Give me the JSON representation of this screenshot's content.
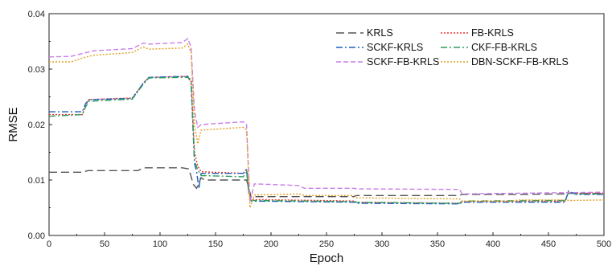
{
  "chart_data": {
    "type": "line",
    "title": "",
    "xlabel": "Epoch",
    "ylabel": "RMSE",
    "xlim": [
      0,
      500
    ],
    "ylim": [
      0,
      0.04
    ],
    "xticks": [
      0,
      50,
      100,
      150,
      200,
      250,
      300,
      350,
      400,
      450,
      500
    ],
    "yticks": [
      0.0,
      0.01,
      0.02,
      0.03,
      0.04
    ],
    "ytick_labels": [
      "0.00",
      "0.01",
      "0.02",
      "0.03",
      "0.04"
    ],
    "grid": false,
    "legend_position": "top-right",
    "series": [
      {
        "name": "KRLS",
        "color": "#555555",
        "dash": "long-dash",
        "points": [
          [
            0,
            0.0114
          ],
          [
            30,
            0.0114
          ],
          [
            35,
            0.0117
          ],
          [
            80,
            0.0117
          ],
          [
            85,
            0.0122
          ],
          [
            120,
            0.0122
          ],
          [
            126,
            0.012
          ],
          [
            130,
            0.0092
          ],
          [
            133,
            0.0085
          ],
          [
            137,
            0.0104
          ],
          [
            140,
            0.01
          ],
          [
            178,
            0.01
          ],
          [
            180,
            0.0085
          ],
          [
            182,
            0.007
          ],
          [
            275,
            0.007
          ],
          [
            277,
            0.0072
          ],
          [
            370,
            0.0072
          ],
          [
            372,
            0.0074
          ],
          [
            420,
            0.0074
          ],
          [
            422,
            0.0074
          ],
          [
            465,
            0.0075
          ],
          [
            470,
            0.0076
          ],
          [
            500,
            0.0076
          ]
        ]
      },
      {
        "name": "FB-KRLS",
        "color": "#ee3333",
        "dash": "dot",
        "points": [
          [
            0,
            0.0218
          ],
          [
            30,
            0.0218
          ],
          [
            33,
            0.0235
          ],
          [
            36,
            0.0245
          ],
          [
            75,
            0.0248
          ],
          [
            85,
            0.0275
          ],
          [
            90,
            0.0285
          ],
          [
            125,
            0.0287
          ],
          [
            128,
            0.028
          ],
          [
            131,
            0.015
          ],
          [
            134,
            0.0125
          ],
          [
            137,
            0.0115
          ],
          [
            175,
            0.0112
          ],
          [
            178,
            0.0118
          ],
          [
            180,
            0.008
          ],
          [
            182,
            0.0065
          ],
          [
            275,
            0.0062
          ],
          [
            277,
            0.006
          ],
          [
            370,
            0.0058
          ],
          [
            372,
            0.0061
          ],
          [
            465,
            0.0062
          ],
          [
            468,
            0.0078
          ],
          [
            475,
            0.0076
          ],
          [
            500,
            0.0076
          ]
        ]
      },
      {
        "name": "SCKF-KRLS",
        "color": "#1f5fbf",
        "dash": "dash-dot",
        "points": [
          [
            0,
            0.0223
          ],
          [
            30,
            0.0223
          ],
          [
            33,
            0.0238
          ],
          [
            36,
            0.0245
          ],
          [
            75,
            0.0247
          ],
          [
            85,
            0.0275
          ],
          [
            90,
            0.0285
          ],
          [
            125,
            0.0287
          ],
          [
            128,
            0.0275
          ],
          [
            131,
            0.013
          ],
          [
            133,
            0.0115
          ],
          [
            135,
            0.0085
          ],
          [
            137,
            0.0112
          ],
          [
            175,
            0.0112
          ],
          [
            178,
            0.012
          ],
          [
            180,
            0.0075
          ],
          [
            182,
            0.0062
          ],
          [
            275,
            0.006
          ],
          [
            277,
            0.0058
          ],
          [
            370,
            0.0057
          ],
          [
            372,
            0.006
          ],
          [
            465,
            0.006
          ],
          [
            468,
            0.008
          ],
          [
            475,
            0.0074
          ],
          [
            500,
            0.0074
          ]
        ]
      },
      {
        "name": "CKF-FB-KRLS",
        "color": "#2a9d5a",
        "dash": "dash-dot",
        "points": [
          [
            0,
            0.0215
          ],
          [
            30,
            0.0218
          ],
          [
            33,
            0.0232
          ],
          [
            36,
            0.0242
          ],
          [
            75,
            0.0246
          ],
          [
            85,
            0.0273
          ],
          [
            90,
            0.0284
          ],
          [
            125,
            0.0285
          ],
          [
            128,
            0.0278
          ],
          [
            131,
            0.0135
          ],
          [
            134,
            0.0118
          ],
          [
            137,
            0.0108
          ],
          [
            175,
            0.0106
          ],
          [
            178,
            0.0114
          ],
          [
            180,
            0.0078
          ],
          [
            182,
            0.0063
          ],
          [
            275,
            0.0061
          ],
          [
            277,
            0.006
          ],
          [
            370,
            0.0058
          ],
          [
            372,
            0.0062
          ],
          [
            465,
            0.0063
          ],
          [
            468,
            0.0077
          ],
          [
            475,
            0.0075
          ],
          [
            500,
            0.0075
          ]
        ]
      },
      {
        "name": "SCKF-FB-KRLS",
        "color": "#c97ee8",
        "dash": "dash",
        "points": [
          [
            0,
            0.0322
          ],
          [
            20,
            0.0323
          ],
          [
            30,
            0.0328
          ],
          [
            40,
            0.0333
          ],
          [
            75,
            0.0337
          ],
          [
            85,
            0.0347
          ],
          [
            90,
            0.0345
          ],
          [
            120,
            0.0348
          ],
          [
            125,
            0.0355
          ],
          [
            128,
            0.034
          ],
          [
            131,
            0.0225
          ],
          [
            134,
            0.0195
          ],
          [
            137,
            0.02
          ],
          [
            175,
            0.0205
          ],
          [
            178,
            0.02
          ],
          [
            181,
            0.006
          ],
          [
            185,
            0.0093
          ],
          [
            225,
            0.009
          ],
          [
            230,
            0.0085
          ],
          [
            275,
            0.0085
          ],
          [
            277,
            0.0084
          ],
          [
            370,
            0.0083
          ],
          [
            372,
            0.0075
          ],
          [
            500,
            0.0078
          ]
        ]
      },
      {
        "name": "DBN-SCKF-FB-KRLS",
        "color": "#e0a020",
        "dash": "dot",
        "points": [
          [
            0,
            0.0313
          ],
          [
            20,
            0.0313
          ],
          [
            30,
            0.032
          ],
          [
            40,
            0.0325
          ],
          [
            75,
            0.033
          ],
          [
            85,
            0.034
          ],
          [
            90,
            0.0336
          ],
          [
            120,
            0.0338
          ],
          [
            125,
            0.0345
          ],
          [
            128,
            0.033
          ],
          [
            131,
            0.02
          ],
          [
            134,
            0.0165
          ],
          [
            137,
            0.019
          ],
          [
            175,
            0.0195
          ],
          [
            178,
            0.019
          ],
          [
            181,
            0.005
          ],
          [
            185,
            0.0073
          ],
          [
            225,
            0.0075
          ],
          [
            230,
            0.0072
          ],
          [
            275,
            0.0072
          ],
          [
            277,
            0.0068
          ],
          [
            370,
            0.0066
          ],
          [
            372,
            0.0062
          ],
          [
            420,
            0.0062
          ],
          [
            422,
            0.0064
          ],
          [
            465,
            0.0064
          ],
          [
            470,
            0.0063
          ],
          [
            500,
            0.0064
          ]
        ]
      }
    ]
  }
}
